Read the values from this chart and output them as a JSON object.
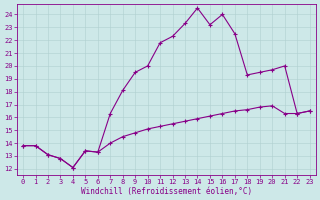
{
  "xlabel": "Windchill (Refroidissement éolien,°C)",
  "bg_color": "#cde8e8",
  "line_color": "#880088",
  "grid_color": "#b0d0d0",
  "x_ticks": [
    0,
    1,
    2,
    3,
    4,
    5,
    6,
    7,
    8,
    9,
    10,
    11,
    12,
    13,
    14,
    15,
    16,
    17,
    18,
    19,
    20,
    21,
    22,
    23
  ],
  "y_ticks": [
    12,
    13,
    14,
    15,
    16,
    17,
    18,
    19,
    20,
    21,
    22,
    23,
    24
  ],
  "xlim": [
    -0.5,
    23.5
  ],
  "ylim": [
    11.5,
    24.8
  ],
  "series1_x": [
    0,
    1,
    2,
    3,
    4,
    5,
    6,
    7,
    8,
    9,
    10,
    11,
    12,
    13,
    14,
    15,
    16,
    17,
    18,
    19,
    20,
    21,
    22,
    23
  ],
  "series1_y": [
    13.8,
    13.8,
    13.1,
    12.8,
    12.1,
    13.4,
    13.3,
    16.3,
    18.1,
    19.5,
    20.0,
    21.8,
    22.3,
    23.3,
    24.5,
    23.2,
    24.0,
    22.5,
    19.3,
    19.5,
    19.7,
    20.0,
    16.3,
    16.5
  ],
  "series2_x": [
    0,
    1,
    2,
    3,
    4,
    5,
    6,
    7,
    8,
    9,
    10,
    11,
    12,
    13,
    14,
    15,
    16,
    17,
    18,
    19,
    20,
    21,
    22,
    23
  ],
  "series2_y": [
    13.8,
    13.8,
    13.1,
    12.8,
    12.1,
    13.4,
    13.3,
    14.0,
    14.5,
    14.8,
    15.1,
    15.3,
    15.5,
    15.7,
    15.9,
    16.1,
    16.3,
    16.5,
    16.6,
    16.8,
    16.9,
    16.3,
    16.3,
    16.5
  ],
  "tick_fontsize": 5,
  "xlabel_fontsize": 5.5
}
